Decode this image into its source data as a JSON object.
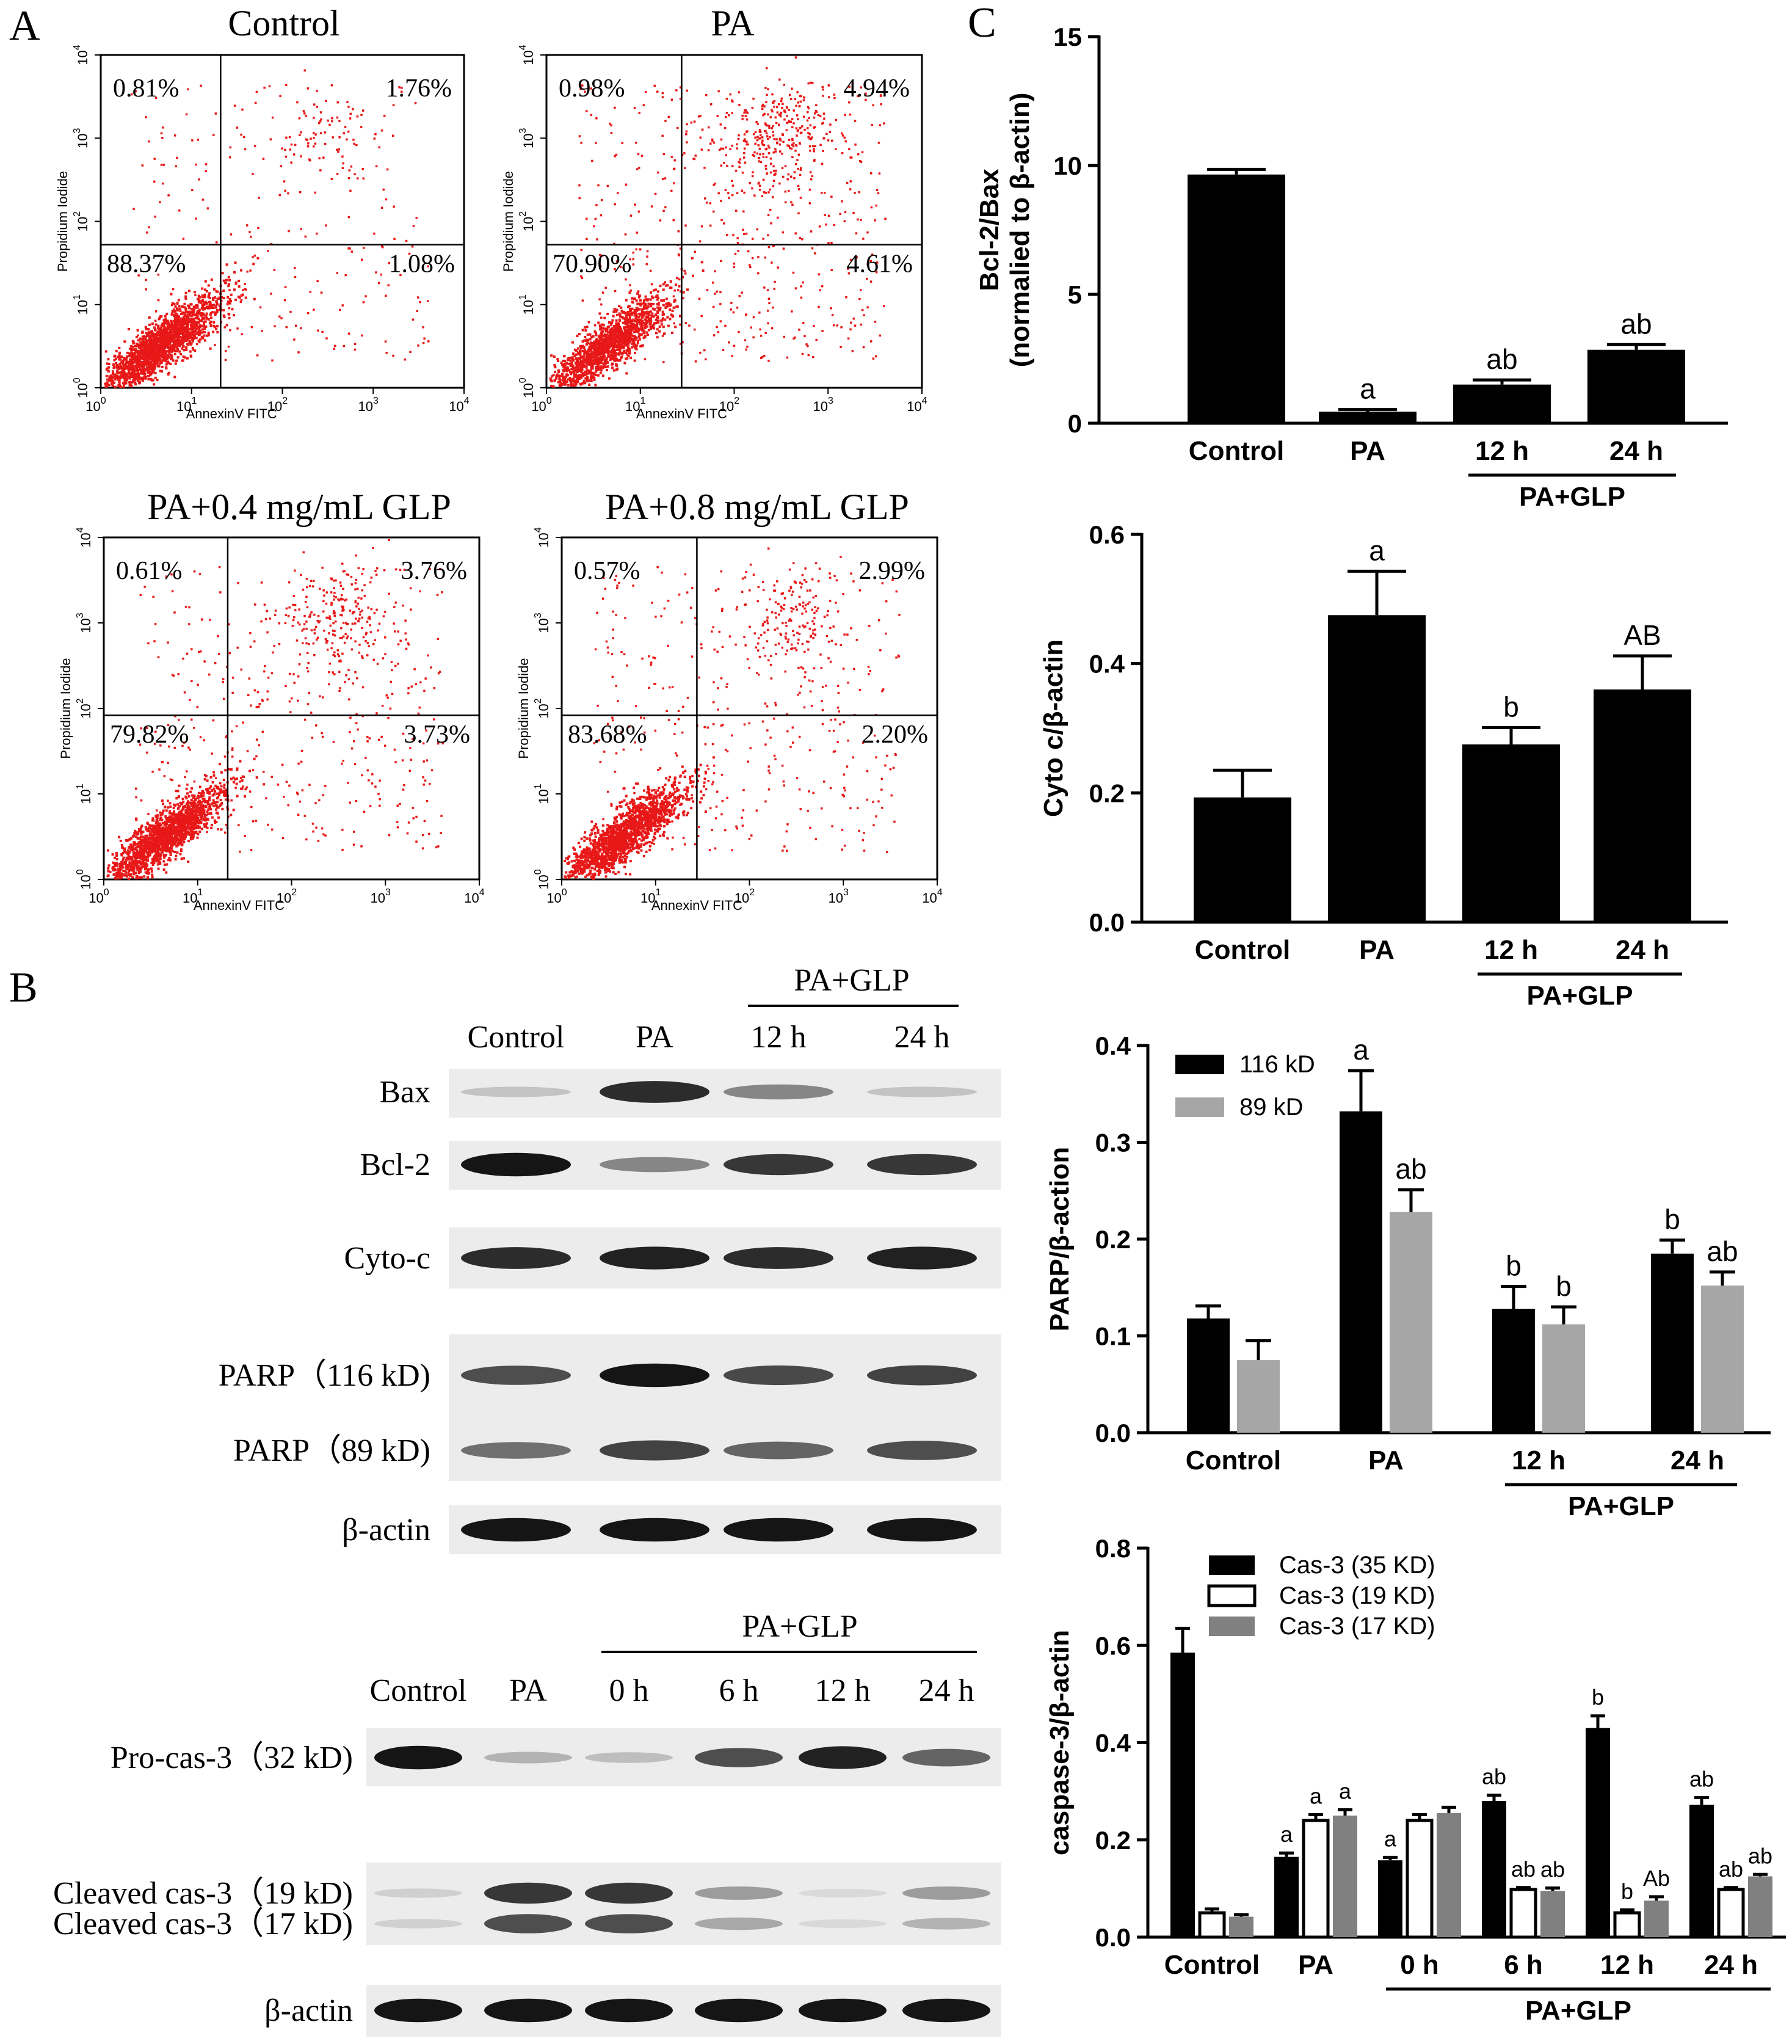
{
  "panel_letters": [
    "A",
    "B",
    "C"
  ],
  "flow": {
    "xaxis_label": "AnnexinV FITC",
    "yaxis_label": "Propidium Iodide",
    "ticks": [
      "10",
      "1",
      "2",
      "3",
      "4"
    ],
    "tick_exponents": [
      "0",
      "1",
      "2",
      "3",
      "4"
    ],
    "plots": [
      {
        "title": "Control",
        "ul": "0.81%",
        "ur": "1.76%",
        "ll": "88.37%",
        "lr": "1.08%"
      },
      {
        "title": "PA",
        "ul": "0.98%",
        "ur": "4.94%",
        "ll": "70.90%",
        "lr": "4.61%"
      },
      {
        "title": "PA+0.4 mg/mL GLP",
        "ul": "0.61%",
        "ur": "3.76%",
        "ll": "79.82%",
        "lr": "3.73%"
      },
      {
        "title": "PA+0.8 mg/mL GLP",
        "ul": "0.57%",
        "ur": "2.99%",
        "ll": "83.68%",
        "lr": "2.20%"
      }
    ]
  },
  "blot1": {
    "group_label": "PA+GLP",
    "lanes": [
      "Control",
      "PA",
      "12 h",
      "24 h"
    ],
    "rows": [
      {
        "label": "Bax",
        "intensity": [
          0.18,
          0.85,
          0.45,
          0.18
        ]
      },
      {
        "label": "Bcl-2",
        "intensity": [
          0.95,
          0.45,
          0.8,
          0.8
        ]
      },
      {
        "label": "Cyto-c",
        "intensity": [
          0.85,
          0.9,
          0.85,
          0.9
        ]
      },
      {
        "label": "PARP（116 kD)",
        "intensity": [
          0.7,
          0.95,
          0.72,
          0.75
        ]
      },
      {
        "label": "PARP（89 kD)",
        "intensity": [
          0.55,
          0.75,
          0.6,
          0.7
        ]
      },
      {
        "label": "β-actin",
        "intensity": [
          0.95,
          0.95,
          0.95,
          0.95
        ]
      }
    ]
  },
  "blot2": {
    "group_label": "PA+GLP",
    "lanes": [
      "Control",
      "PA",
      "0 h",
      "6 h",
      "12 h",
      "24 h"
    ],
    "rows": [
      {
        "label": "Pro-cas-3（32 kD)",
        "intensity": [
          0.95,
          0.25,
          0.2,
          0.7,
          0.9,
          0.6
        ]
      },
      {
        "label": "Cleaved cas-3（19 kD)",
        "intensity": [
          0.12,
          0.8,
          0.8,
          0.35,
          0.08,
          0.35
        ]
      },
      {
        "label": "Cleaved cas-3（17 kD)",
        "intensity": [
          0.12,
          0.7,
          0.7,
          0.3,
          0.08,
          0.25
        ]
      },
      {
        "label": "β-actin",
        "intensity": [
          0.95,
          0.95,
          0.95,
          0.95,
          0.95,
          0.95
        ]
      }
    ]
  },
  "chart_data": [
    {
      "type": "bar",
      "title": "",
      "ylabel_lines": [
        "Bcl-2/Bax",
        "(normalied to β-actin)"
      ],
      "ylim": [
        0,
        15
      ],
      "yticks": [
        "0",
        "5",
        "10",
        "15"
      ],
      "categories": [
        "Control",
        "PA",
        "12 h",
        "24 h"
      ],
      "group_label": "PA+GLP",
      "series": [
        {
          "name": "Bcl-2/Bax",
          "values": [
            9.65,
            0.45,
            1.5,
            2.85
          ],
          "errors": [
            0.2,
            0.08,
            0.18,
            0.2
          ],
          "labels": [
            "",
            "a",
            "ab",
            "ab"
          ],
          "color": "#000000"
        }
      ]
    },
    {
      "type": "bar",
      "title": "",
      "ylabel_lines": [
        "Cyto c/β-actin"
      ],
      "ylim": [
        0,
        0.6
      ],
      "yticks": [
        "0.0",
        "0.2",
        "0.4",
        "0.6"
      ],
      "categories": [
        "Control",
        "PA",
        "12 h",
        "24 h"
      ],
      "group_label": "PA+GLP",
      "series": [
        {
          "name": "Cyto c",
          "values": [
            0.193,
            0.475,
            0.275,
            0.36
          ],
          "errors": [
            0.042,
            0.068,
            0.026,
            0.052
          ],
          "labels": [
            "",
            "a",
            "b",
            "AB"
          ],
          "color": "#000000"
        }
      ]
    },
    {
      "type": "bar",
      "title": "",
      "ylabel_lines": [
        "PARP/β-action"
      ],
      "ylim": [
        0,
        0.4
      ],
      "yticks": [
        "0.0",
        "0.1",
        "0.2",
        "0.3",
        "0.4"
      ],
      "categories": [
        "Control",
        "PA",
        "12 h",
        "24 h"
      ],
      "group_label": "PA+GLP",
      "legend": "top-left",
      "series": [
        {
          "name": "116 kD",
          "values": [
            0.118,
            0.332,
            0.128,
            0.185
          ],
          "errors": [
            0.013,
            0.042,
            0.023,
            0.014
          ],
          "labels": [
            "",
            "a",
            "b",
            "b"
          ],
          "color": "#000000"
        },
        {
          "name": "89 kD",
          "values": [
            0.075,
            0.228,
            0.112,
            0.152
          ],
          "errors": [
            0.02,
            0.023,
            0.018,
            0.014
          ],
          "labels": [
            "",
            "ab",
            "b",
            "ab"
          ],
          "color": "#a6a6a6"
        }
      ]
    },
    {
      "type": "bar",
      "title": "",
      "ylabel_lines": [
        "caspase-3/β-actin"
      ],
      "ylim": [
        0,
        0.8
      ],
      "yticks": [
        "0.0",
        "0.2",
        "0.4",
        "0.6",
        "0.8"
      ],
      "categories": [
        "Control",
        "PA",
        "0 h",
        "6 h",
        "12 h",
        "24 h"
      ],
      "group_label": "PA+GLP",
      "legend": "top-left",
      "series": [
        {
          "name": "Cas-3 (35 KD)",
          "values": [
            0.585,
            0.165,
            0.158,
            0.28,
            0.43,
            0.272
          ],
          "errors": [
            0.05,
            0.008,
            0.006,
            0.012,
            0.025,
            0.015
          ],
          "labels": [
            "",
            "a",
            "a",
            "ab",
            "b",
            "ab"
          ],
          "color": "#000000"
        },
        {
          "name": "Cas-3 (19 KD)",
          "values": [
            0.05,
            0.24,
            0.24,
            0.098,
            0.05,
            0.098
          ],
          "errors": [
            0.008,
            0.012,
            0.012,
            0.004,
            0.006,
            0.004
          ],
          "labels": [
            "",
            "a",
            "",
            "ab",
            "b",
            "ab"
          ],
          "color": "#ffffff"
        },
        {
          "name": "Cas-3 (17 KD)",
          "values": [
            0.042,
            0.25,
            0.255,
            0.095,
            0.075,
            0.125
          ],
          "errors": [
            0.004,
            0.012,
            0.012,
            0.006,
            0.008,
            0.004
          ],
          "labels": [
            "",
            "a",
            "",
            "ab",
            "Ab",
            "ab"
          ],
          "color": "#808080"
        }
      ]
    }
  ]
}
